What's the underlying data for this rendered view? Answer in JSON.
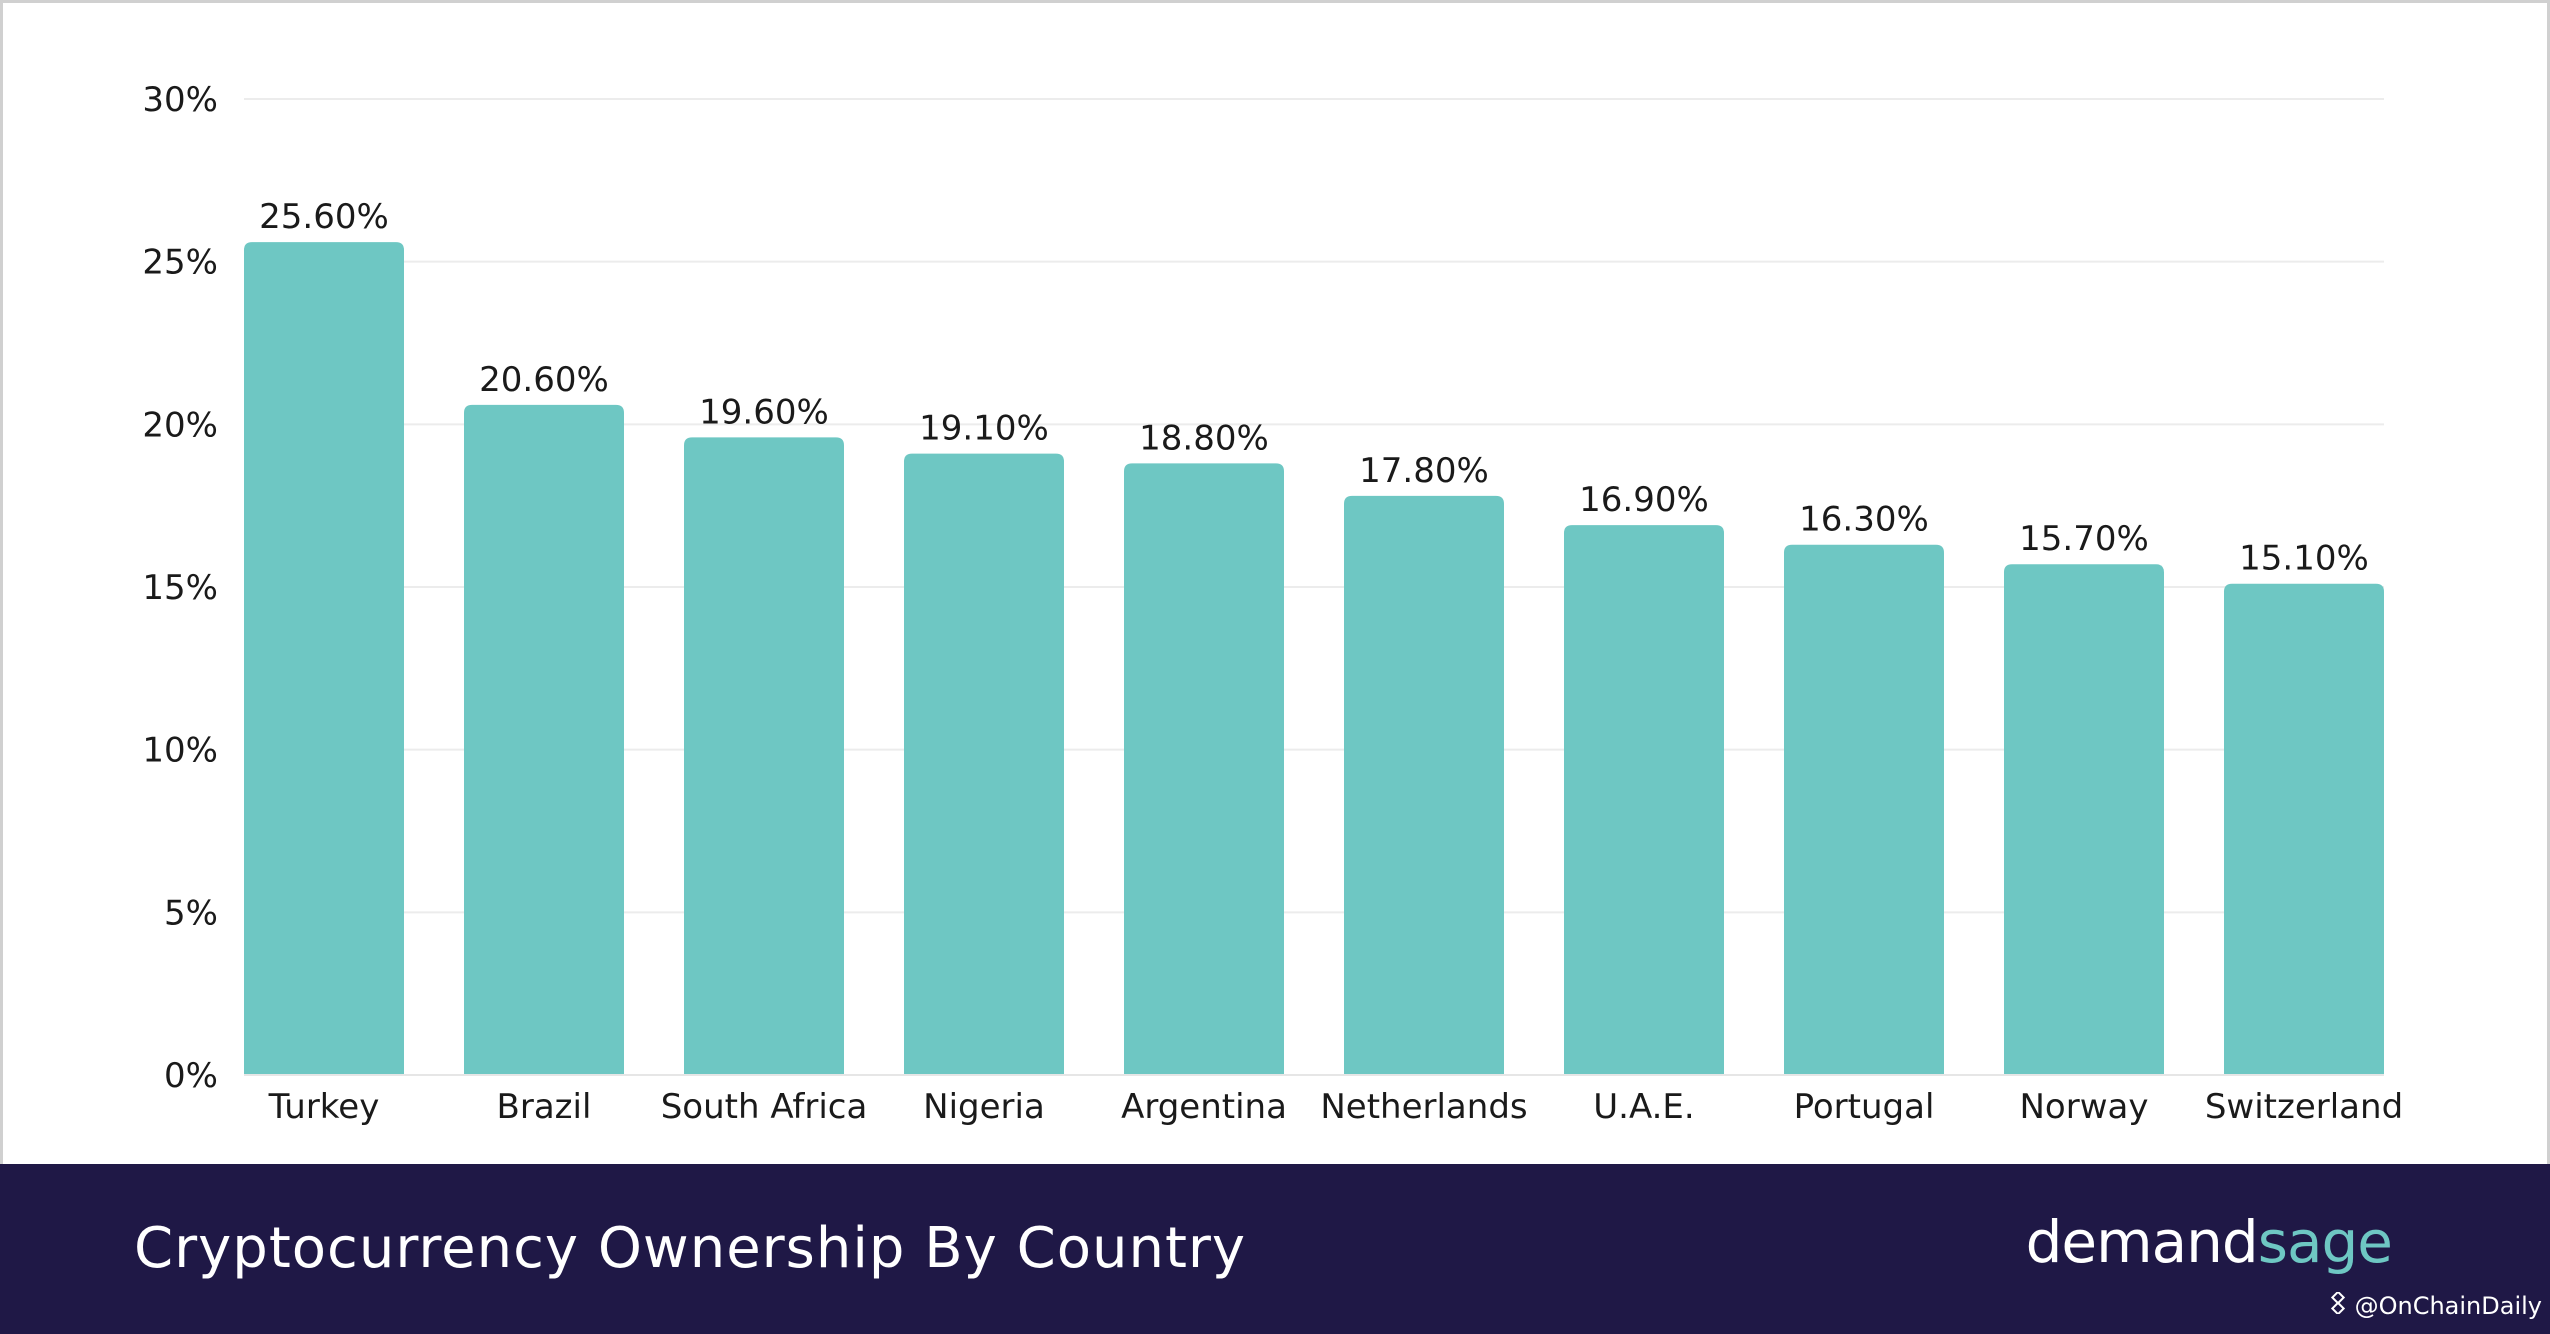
{
  "chart_data": {
    "type": "bar",
    "title": "Cryptocurrency Ownership By Country",
    "xlabel": "",
    "ylabel": "",
    "categories": [
      "Turkey",
      "Brazil",
      "South Africa",
      "Nigeria",
      "Argentina",
      "Netherlands",
      "U.A.E.",
      "Portugal",
      "Norway",
      "Switzerland"
    ],
    "values": [
      25.6,
      20.6,
      19.6,
      19.1,
      18.8,
      17.8,
      16.9,
      16.3,
      15.7,
      15.1
    ],
    "data_labels": [
      "25.60%",
      "20.60%",
      "19.60%",
      "19.10%",
      "18.80%",
      "17.80%",
      "16.90%",
      "16.30%",
      "15.70%",
      "15.10%"
    ],
    "ylim": [
      0,
      30
    ],
    "yticks": [
      0,
      5,
      10,
      15,
      20,
      25,
      30
    ],
    "ytick_labels": [
      "0%",
      "5%",
      "10%",
      "15%",
      "20%",
      "25%",
      "30%"
    ],
    "grid": true,
    "legend": "none",
    "colors": {
      "bar": "#6ec7c3",
      "grid": "#ececec",
      "footer_bg": "#1f1846",
      "brand_accent": "#6ec7c3"
    }
  },
  "footer": {
    "title": "Cryptocurrency Ownership By Country",
    "brand_part1": "demand",
    "brand_part2": "sage",
    "watermark_icon": "binance-diamond-icon",
    "watermark_text": "@OnChainDaily"
  }
}
